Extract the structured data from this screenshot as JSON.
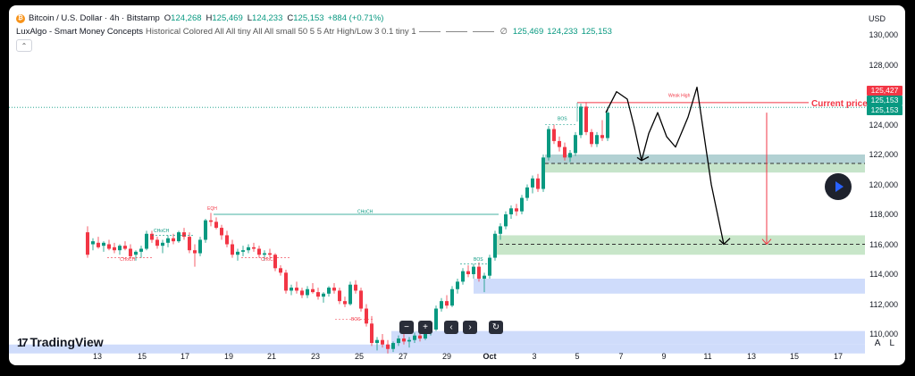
{
  "legend": {
    "coin_glyph": "₿",
    "symbol": "Bitcoin / U.S. Dollar · 4h · Bitstamp",
    "o_label": "O",
    "o_val": "124,268",
    "h_label": "H",
    "h_val": "125,469",
    "l_label": "L",
    "l_val": "124,233",
    "c_label": "C",
    "c_val": "125,153",
    "change": "+884 (+0.71%)",
    "indicator": "LuxAlgo - Smart Money Concepts",
    "indicator_params": "Historical Colored All All tiny All All small 50 5 5 Atr High/Low 3 0.1 tiny 1",
    "empty_symbol": "∅",
    "ind_v1": "125,469",
    "ind_v2": "124,233",
    "ind_v3": "125,153"
  },
  "collapse_glyph": "⌃",
  "currency": "USD",
  "price_tags": [
    {
      "text": "125,427",
      "color": "#f23645"
    },
    {
      "text": "125,153",
      "color": "#089981"
    },
    {
      "text": "125,153",
      "color": "#089981"
    }
  ],
  "current_price_label": "Current price",
  "y_axis_labels": [
    "130,000",
    "128,000",
    "126,000",
    "124,000",
    "122,000",
    "120,000",
    "118,000",
    "116,000",
    "114,000",
    "112,000",
    "110,000"
  ],
  "x_axis_labels": [
    "13",
    "15",
    "17",
    "19",
    "21",
    "23",
    "25",
    "27",
    "29",
    "Oct",
    "3",
    "5",
    "7",
    "9",
    "11",
    "13",
    "15",
    "17"
  ],
  "annotations": {
    "choch_long": "CHoCH",
    "choch_a": "CHoCH",
    "choch_b": "CHoCH",
    "choch_c": "CHoCH",
    "eqh": "EQH",
    "bos_a": "BOS",
    "bos_b": "BOS",
    "bos_c": "BOS",
    "weak_high": "Weak High"
  },
  "brand": {
    "mark": "17",
    "name": "TradingView"
  },
  "controls": {
    "zoom_out": "−",
    "zoom_in": "+",
    "left": "‹",
    "right": "›",
    "reset": "↻"
  },
  "axis_toggles": {
    "a": "A",
    "l": "L"
  },
  "colors": {
    "up": "#089981",
    "down": "#f23645",
    "zone_green": "#c8e6c9",
    "zone_blue": "#cfdcfb",
    "zone_teal": "#b2d1d3"
  }
}
